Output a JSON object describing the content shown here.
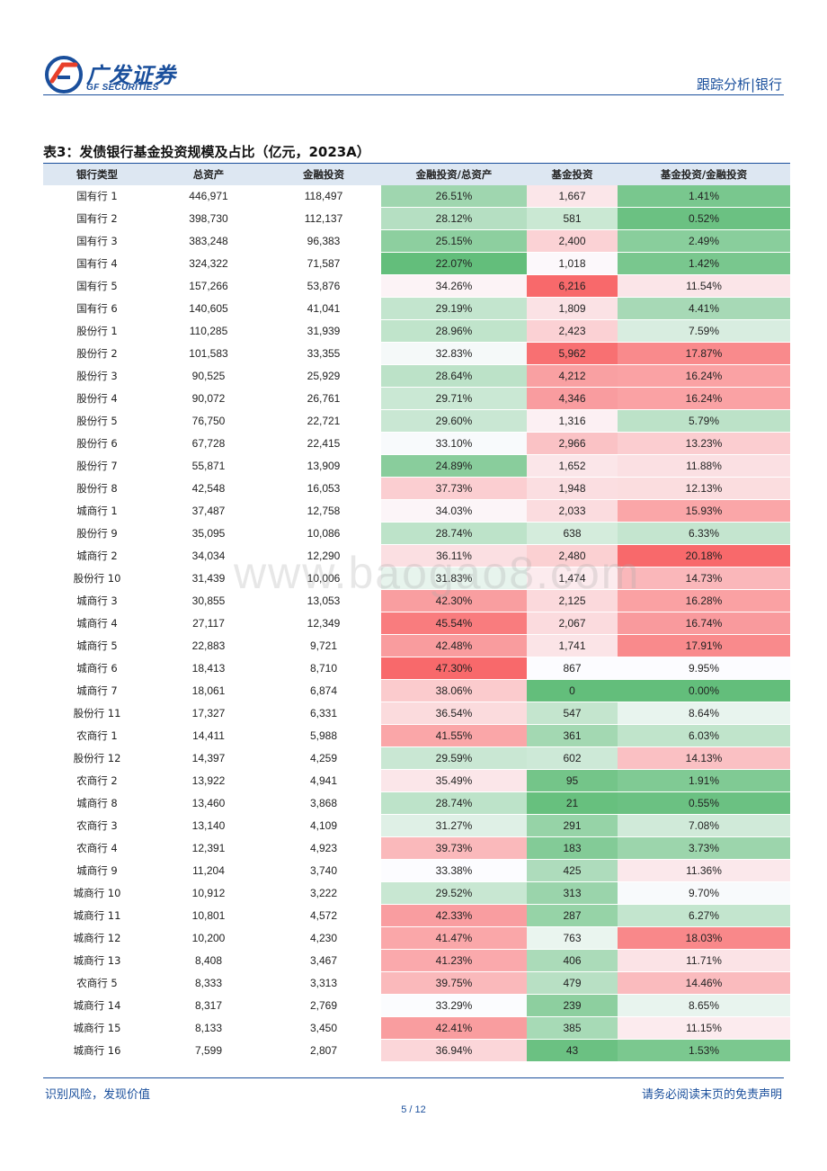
{
  "header": {
    "logo_cn": "广发证券",
    "logo_en": "GF SECURITIES",
    "section": "跟踪分析|银行"
  },
  "table": {
    "title": "表3：发债银行基金投资规模及占比（亿元，2023A）",
    "columns": [
      "银行类型",
      "总资产",
      "金融投资",
      "金融投资/总资产",
      "基金投资",
      "基金投资/金融投资"
    ],
    "rows": [
      [
        "国有行 1",
        "446,971",
        "118,497",
        "26.51%",
        "1,667",
        "1.41%"
      ],
      [
        "国有行 2",
        "398,730",
        "112,137",
        "28.12%",
        "581",
        "0.52%"
      ],
      [
        "国有行 3",
        "383,248",
        "96,383",
        "25.15%",
        "2,400",
        "2.49%"
      ],
      [
        "国有行 4",
        "324,322",
        "71,587",
        "22.07%",
        "1,018",
        "1.42%"
      ],
      [
        "国有行 5",
        "157,266",
        "53,876",
        "34.26%",
        "6,216",
        "11.54%"
      ],
      [
        "国有行 6",
        "140,605",
        "41,041",
        "29.19%",
        "1,809",
        "4.41%"
      ],
      [
        "股份行 1",
        "110,285",
        "31,939",
        "28.96%",
        "2,423",
        "7.59%"
      ],
      [
        "股份行 2",
        "101,583",
        "33,355",
        "32.83%",
        "5,962",
        "17.87%"
      ],
      [
        "股份行 3",
        "90,525",
        "25,929",
        "28.64%",
        "4,212",
        "16.24%"
      ],
      [
        "股份行 4",
        "90,072",
        "26,761",
        "29.71%",
        "4,346",
        "16.24%"
      ],
      [
        "股份行 5",
        "76,750",
        "22,721",
        "29.60%",
        "1,316",
        "5.79%"
      ],
      [
        "股份行 6",
        "67,728",
        "22,415",
        "33.10%",
        "2,966",
        "13.23%"
      ],
      [
        "股份行 7",
        "55,871",
        "13,909",
        "24.89%",
        "1,652",
        "11.88%"
      ],
      [
        "股份行 8",
        "42,548",
        "16,053",
        "37.73%",
        "1,948",
        "12.13%"
      ],
      [
        "城商行 1",
        "37,487",
        "12,758",
        "34.03%",
        "2,033",
        "15.93%"
      ],
      [
        "股份行 9",
        "35,095",
        "10,086",
        "28.74%",
        "638",
        "6.33%"
      ],
      [
        "城商行 2",
        "34,034",
        "12,290",
        "36.11%",
        "2,480",
        "20.18%"
      ],
      [
        "股份行 10",
        "31,439",
        "10,006",
        "31.83%",
        "1,474",
        "14.73%"
      ],
      [
        "城商行 3",
        "30,855",
        "13,053",
        "42.30%",
        "2,125",
        "16.28%"
      ],
      [
        "城商行 4",
        "27,117",
        "12,349",
        "45.54%",
        "2,067",
        "16.74%"
      ],
      [
        "城商行 5",
        "22,883",
        "9,721",
        "42.48%",
        "1,741",
        "17.91%"
      ],
      [
        "城商行 6",
        "18,413",
        "8,710",
        "47.30%",
        "867",
        "9.95%"
      ],
      [
        "城商行 7",
        "18,061",
        "6,874",
        "38.06%",
        "0",
        "0.00%"
      ],
      [
        "股份行 11",
        "17,327",
        "6,331",
        "36.54%",
        "547",
        "8.64%"
      ],
      [
        "农商行 1",
        "14,411",
        "5,988",
        "41.55%",
        "361",
        "6.03%"
      ],
      [
        "股份行 12",
        "14,397",
        "4,259",
        "29.59%",
        "602",
        "14.13%"
      ],
      [
        "农商行 2",
        "13,922",
        "4,941",
        "35.49%",
        "95",
        "1.91%"
      ],
      [
        "城商行 8",
        "13,460",
        "3,868",
        "28.74%",
        "21",
        "0.55%"
      ],
      [
        "农商行 3",
        "13,140",
        "4,109",
        "31.27%",
        "291",
        "7.08%"
      ],
      [
        "农商行 4",
        "12,391",
        "4,923",
        "39.73%",
        "183",
        "3.73%"
      ],
      [
        "城商行 9",
        "11,204",
        "3,740",
        "33.38%",
        "425",
        "11.36%"
      ],
      [
        "城商行 10",
        "10,912",
        "3,222",
        "29.52%",
        "313",
        "9.70%"
      ],
      [
        "城商行 11",
        "10,801",
        "4,572",
        "42.33%",
        "287",
        "6.27%"
      ],
      [
        "城商行 12",
        "10,200",
        "4,230",
        "41.47%",
        "763",
        "18.03%"
      ],
      [
        "城商行 13",
        "8,408",
        "3,467",
        "41.23%",
        "406",
        "11.71%"
      ],
      [
        "农商行 5",
        "8,333",
        "3,313",
        "39.75%",
        "479",
        "14.46%"
      ],
      [
        "城商行 14",
        "8,317",
        "2,769",
        "33.29%",
        "239",
        "8.65%"
      ],
      [
        "城商行 15",
        "8,133",
        "3,450",
        "42.41%",
        "385",
        "11.15%"
      ],
      [
        "城商行 16",
        "7,599",
        "2,807",
        "36.94%",
        "43",
        "1.53%"
      ]
    ]
  },
  "watermark": "www.baogao8.com",
  "footer": {
    "left": "识别风险，发现价值",
    "right": "请务必阅读末页的免责声明",
    "page": "5 / 12"
  },
  "colors": {
    "brand_blue": "#1a4f9c",
    "header_fill": "#dde7f2",
    "scale_high": "#f8696b",
    "scale_mid": "#fcfcff",
    "scale_low": "#63be7b"
  }
}
